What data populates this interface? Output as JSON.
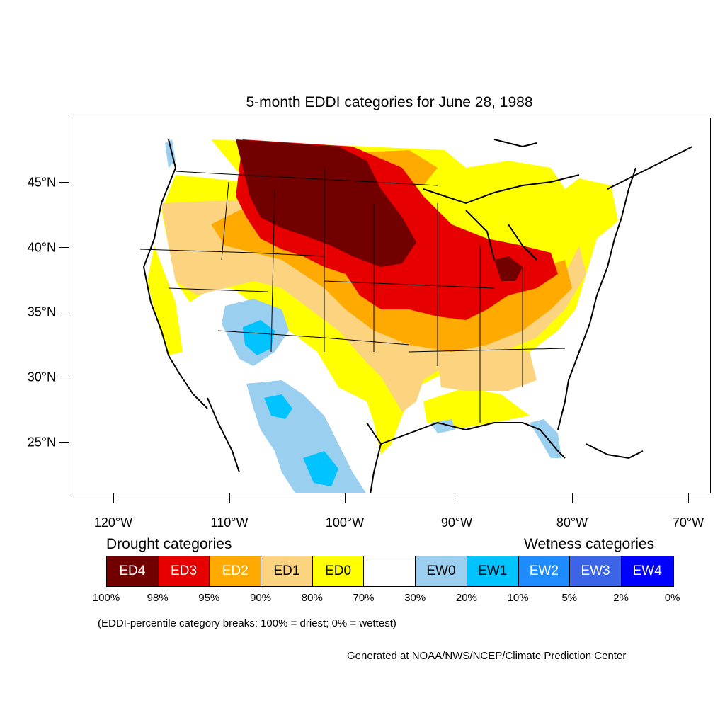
{
  "title": "5-month EDDI categories for June 28, 1988",
  "map": {
    "projection": "lat-lon",
    "lon_range": [
      -124,
      -68.5
    ],
    "lat_range": [
      21,
      49.5
    ],
    "lat_ticks": [
      {
        "value": 45,
        "label": "45°N"
      },
      {
        "value": 40,
        "label": "40°N"
      },
      {
        "value": 35,
        "label": "35°N"
      },
      {
        "value": 30,
        "label": "30°N"
      },
      {
        "value": 25,
        "label": "25°N"
      }
    ],
    "lon_ticks": [
      {
        "value": -120,
        "label": "120°W"
      },
      {
        "value": -110,
        "label": "110°W"
      },
      {
        "value": -100,
        "label": "100°W"
      },
      {
        "value": -90,
        "label": "90°W"
      },
      {
        "value": -80,
        "label": "80°W"
      },
      {
        "value": -70,
        "label": "70°W"
      }
    ]
  },
  "legend": {
    "drought_heading": "Drought categories",
    "wetness_heading": "Wetness categories",
    "categories": [
      {
        "label": "ED4",
        "color": "#730000",
        "text_color": "#ffffff"
      },
      {
        "label": "ED3",
        "color": "#e60000",
        "text_color": "#ffffff"
      },
      {
        "label": "ED2",
        "color": "#ffaa00",
        "text_color": "#ffffff"
      },
      {
        "label": "ED1",
        "color": "#fcd37f",
        "text_color": "#000000"
      },
      {
        "label": "ED0",
        "color": "#ffff00",
        "text_color": "#000000"
      },
      {
        "label": "",
        "color": "#ffffff",
        "text_color": "#000000"
      },
      {
        "label": "EW0",
        "color": "#9bcff0",
        "text_color": "#000000"
      },
      {
        "label": "EW1",
        "color": "#00c3ff",
        "text_color": "#000000"
      },
      {
        "label": "EW2",
        "color": "#1e8cff",
        "text_color": "#ffffff"
      },
      {
        "label": "EW3",
        "color": "#3c64e6",
        "text_color": "#ffffff"
      },
      {
        "label": "EW4",
        "color": "#0000ff",
        "text_color": "#ffffff"
      }
    ],
    "percentiles": [
      "100%",
      "98%",
      "95%",
      "90%",
      "80%",
      "70%",
      "30%",
      "20%",
      "10%",
      "5%",
      "2%",
      "0%"
    ]
  },
  "note": "(EDDI-percentile category breaks: 100% = driest; 0% = wettest)",
  "credit": "Generated at NOAA/NWS/NCEP/Climate Prediction Center"
}
